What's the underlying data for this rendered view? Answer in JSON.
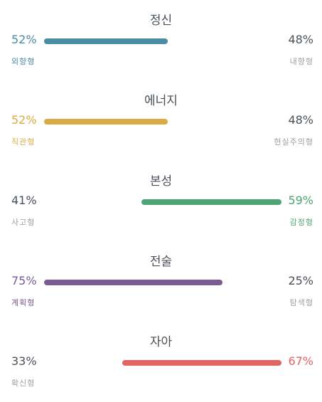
{
  "traits": [
    {
      "title": "정신",
      "left_pct": "52%",
      "right_pct": "48%",
      "left_label": "외향형",
      "right_label": "내향형",
      "dominant": "left",
      "dominant_value": 52,
      "color": "#4a8ba6"
    },
    {
      "title": "에너지",
      "left_pct": "52%",
      "right_pct": "48%",
      "left_label": "직관형",
      "right_label": "현실주의형",
      "dominant": "left",
      "dominant_value": 52,
      "color": "#dcaa44"
    },
    {
      "title": "본성",
      "left_pct": "41%",
      "right_pct": "59%",
      "left_label": "사고형",
      "right_label": "감정형",
      "dominant": "right",
      "dominant_value": 59,
      "color": "#4ea474"
    },
    {
      "title": "전술",
      "left_pct": "75%",
      "right_pct": "25%",
      "left_label": "계획형",
      "right_label": "탐색형",
      "dominant": "left",
      "dominant_value": 75,
      "color": "#7b5b95"
    },
    {
      "title": "자아",
      "left_pct": "33%",
      "right_pct": "67%",
      "left_label": "확신형",
      "right_label": "",
      "dominant": "right",
      "dominant_value": 67,
      "color": "#e06563"
    }
  ]
}
